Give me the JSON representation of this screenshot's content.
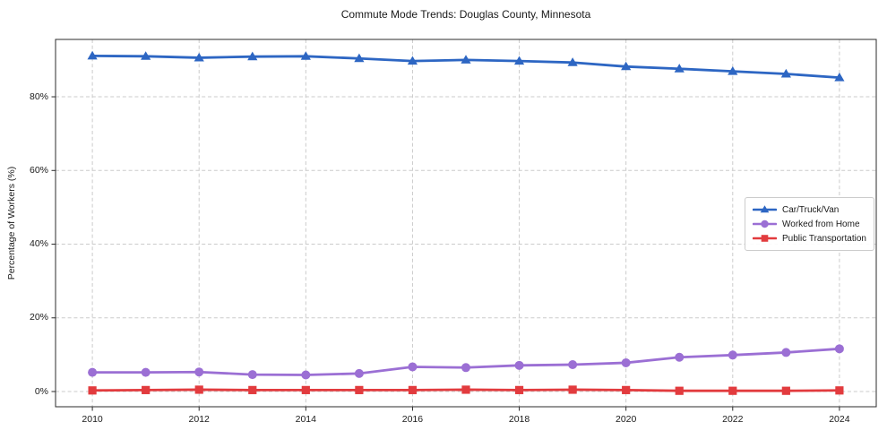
{
  "title": "Commute Mode Trends: Douglas County, Minnesota",
  "chart_data": {
    "type": "line",
    "title": "Commute Mode Trends: Douglas County, Minnesota",
    "xlabel": "",
    "ylabel": "Percentage of Workers (%)",
    "x": [
      2010,
      2011,
      2012,
      2013,
      2014,
      2015,
      2016,
      2017,
      2018,
      2019,
      2020,
      2021,
      2022,
      2023,
      2024
    ],
    "x_ticks": [
      2010,
      2012,
      2014,
      2016,
      2018,
      2020,
      2022,
      2024
    ],
    "y_ticks": [
      0,
      20,
      40,
      60,
      80
    ],
    "y_tick_suffix": "%",
    "xlim": [
      2009.31,
      2024.69
    ],
    "ylim": [
      -4.13,
      95.57
    ],
    "grid": true,
    "grid_style": "dashed",
    "legend_position": "center-right",
    "background_color": "#ffffff",
    "series": [
      {
        "name": "Car/Truck/Van",
        "color": "#2d66c3",
        "marker": "triangle",
        "values": [
          91.1,
          91.0,
          90.6,
          90.9,
          91.0,
          90.4,
          89.7,
          90.0,
          89.7,
          89.3,
          88.2,
          87.6,
          86.9,
          86.2,
          85.2
        ]
      },
      {
        "name": "Worked from Home",
        "color": "#9b6fd4",
        "marker": "circle",
        "values": [
          5.2,
          5.2,
          5.3,
          4.6,
          4.5,
          4.9,
          6.7,
          6.5,
          7.1,
          7.3,
          7.8,
          9.3,
          9.9,
          10.6,
          11.6
        ]
      },
      {
        "name": "Public Transportation",
        "color": "#e23b3e",
        "marker": "square",
        "values": [
          0.3,
          0.4,
          0.5,
          0.4,
          0.4,
          0.4,
          0.4,
          0.5,
          0.4,
          0.5,
          0.4,
          0.2,
          0.2,
          0.2,
          0.3
        ]
      }
    ]
  }
}
